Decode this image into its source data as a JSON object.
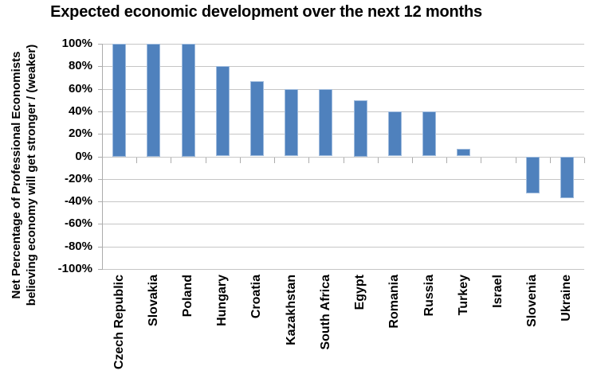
{
  "chart_data": {
    "type": "bar",
    "title": "Expected economic development over the next 12 months",
    "ylabel_lines": [
      "Net Percentage of Professional Economists",
      "believing economy will get stronger / (weaker)"
    ],
    "xlabel": "",
    "categories": [
      "Czech Republic",
      "Slovakia",
      "Poland",
      "Hungary",
      "Croatia",
      "Kazakhstan",
      "South Africa",
      "Egypt",
      "Romania",
      "Russia",
      "Turkey",
      "Israel",
      "Slovenia",
      "Ukraine"
    ],
    "values": [
      100,
      100,
      100,
      80,
      67,
      60,
      60,
      50,
      40,
      40,
      7,
      0,
      -33,
      -37
    ],
    "ylim": [
      -100,
      100
    ],
    "yticks": [
      100,
      80,
      60,
      40,
      20,
      0,
      -20,
      -40,
      -60,
      -80,
      -100
    ],
    "ytick_labels": [
      "100%",
      "80%",
      "60%",
      "40%",
      "20%",
      "0%",
      "-20%",
      "-40%",
      "-60%",
      "-80%",
      "-100%"
    ],
    "grid": "horizontal",
    "legend": "none",
    "bar_color": "#4f81bd",
    "bar_edge_color": "#9fbbdd",
    "gridline_color": "#c6c6c6",
    "axis_color": "#acacac",
    "text_color": "#000000",
    "background_color": "#ffffff"
  }
}
